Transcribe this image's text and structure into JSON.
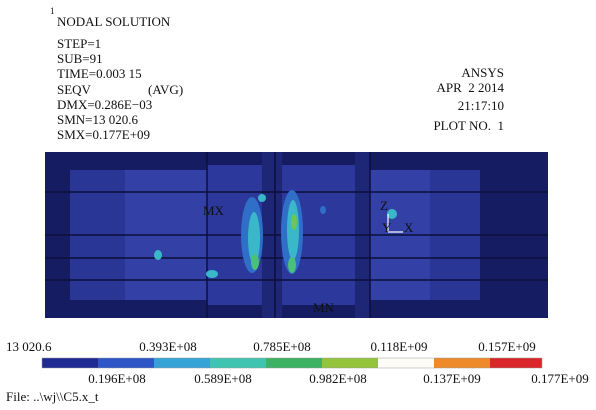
{
  "header": {
    "marker": "1",
    "title": "NODAL SOLUTION",
    "lines": [
      "STEP=1",
      "SUB=91",
      "TIME=0.003 15"
    ],
    "seqv": "SEQV",
    "avg": "(AVG)",
    "stats": [
      "DMX=0.286E−03",
      "SMN=13 020.6",
      "SMX=0.177E+09"
    ]
  },
  "info": {
    "product": "ANSYS",
    "date": "APR  2 2014",
    "time": "21:17:10",
    "plot": "PLOT NO.  1"
  },
  "plot": {
    "labels": {
      "mx": "MX",
      "mn": "MN",
      "z": "Z",
      "y": "Y",
      "x": "X"
    }
  },
  "legend": {
    "top": [
      "13 020.6",
      "0.393E+08",
      "0.785E+08",
      "0.118E+09",
      "0.157E+09"
    ],
    "bottom": [
      "0.196E+08",
      "0.589E+08",
      "0.982E+08",
      "0.137E+09",
      "0.177E+09"
    ]
  },
  "footer": "File: ..\\wj\\\\C5.x_t"
}
